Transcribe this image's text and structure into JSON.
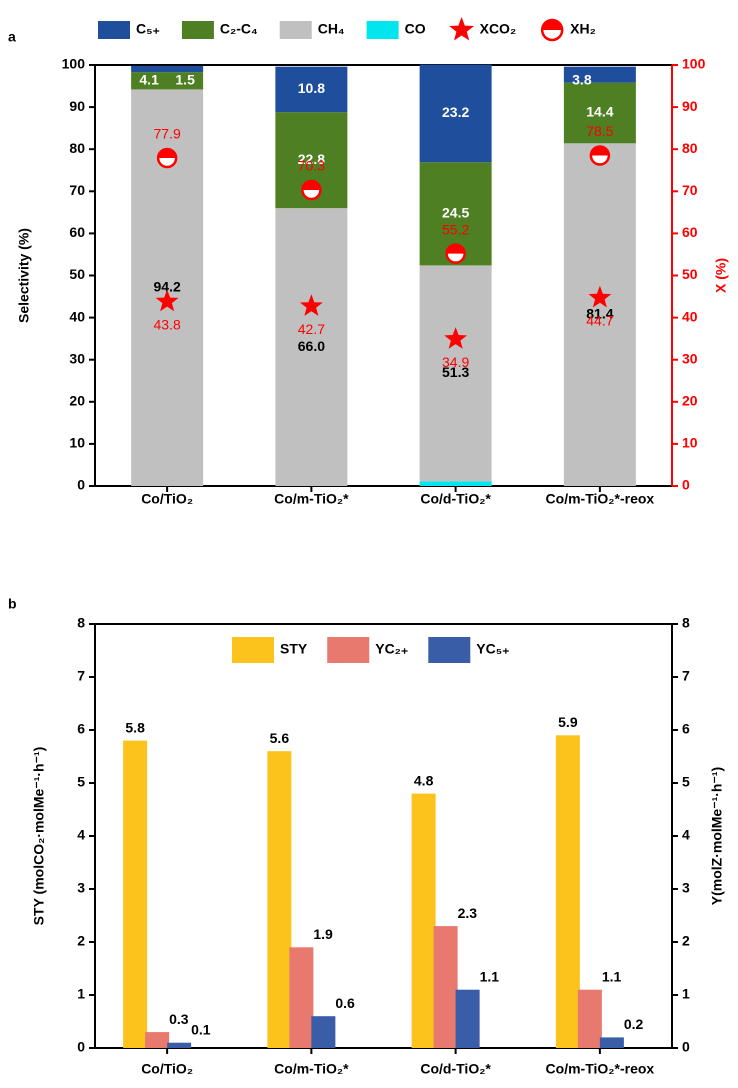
{
  "chart_data": [
    {
      "type": "bar",
      "stacked": true,
      "label": "a",
      "categories": [
        "Co/TiO₂",
        "Co/m-TiO₂*",
        "Co/d-TiO₂*",
        "Co/m-TiO₂*-reox"
      ],
      "y_label": "Selectivity (%)",
      "y2_label": "X (%)",
      "y2color": "#ff0000",
      "ylim": [
        0,
        100
      ],
      "yticks": [
        0,
        10,
        20,
        30,
        40,
        50,
        60,
        70,
        80,
        90,
        100
      ],
      "y2lim": [
        0,
        100
      ],
      "y2ticks": [
        0,
        10,
        20,
        30,
        40,
        50,
        60,
        70,
        80,
        90,
        100
      ],
      "series": [
        {
          "name": "C₅₊",
          "color": "#1f4e9c",
          "values": [
            1.5,
            10.8,
            23.2,
            3.8
          ]
        },
        {
          "name": "C₂-C₄",
          "color": "#4e7f23",
          "values": [
            4.1,
            22.8,
            24.5,
            14.4
          ]
        },
        {
          "name": "CH₄",
          "color": "#c0c0c0",
          "values": [
            94.2,
            66.0,
            51.3,
            81.4
          ],
          "value_labels": [
            "94.2",
            "66.0",
            "51.3",
            "81.4"
          ]
        },
        {
          "name": "CO",
          "color": "#00e5ee",
          "values": [
            null,
            null,
            1.1,
            null
          ]
        },
        {
          "name": "XCO₂",
          "color": "#ff0000",
          "axis": "y2",
          "marker": "star",
          "values": [
            43.8,
            42.7,
            34.9,
            44.7
          ]
        },
        {
          "name": "XH₂",
          "color": "#ff0000",
          "axis": "y2",
          "marker": "half-circle",
          "values": [
            77.9,
            70.3,
            55.2,
            78.5
          ]
        }
      ]
    },
    {
      "type": "bar",
      "label": "b",
      "categories": [
        "Co/TiO₂",
        "Co/m-TiO₂*",
        "Co/d-TiO₂*",
        "Co/m-TiO₂*-reox"
      ],
      "y_label": "STY (molCO₂·molMe⁻¹·h⁻¹)",
      "y2_label": "Y(molZ·molMe⁻¹·h⁻¹)",
      "y2color": "#000000",
      "ylim": [
        0,
        8
      ],
      "yticks": [
        0,
        1,
        2,
        3,
        4,
        5,
        6,
        7,
        8
      ],
      "y2lim": [
        0,
        8
      ],
      "y2ticks": [
        0,
        1,
        2,
        3,
        4,
        5,
        6,
        7,
        8
      ],
      "series": [
        {
          "name": "STY",
          "color": "#fbc31c",
          "values": [
            5.8,
            5.6,
            4.8,
            5.9
          ]
        },
        {
          "name": "YC₂₊",
          "color": "#e8796f",
          "axis": "y2",
          "values": [
            0.3,
            1.9,
            2.3,
            1.1
          ]
        },
        {
          "name": "YC₅₊",
          "color": "#3a5da8",
          "axis": "y2",
          "values": [
            0.1,
            0.6,
            1.1,
            0.2
          ]
        }
      ]
    }
  ]
}
